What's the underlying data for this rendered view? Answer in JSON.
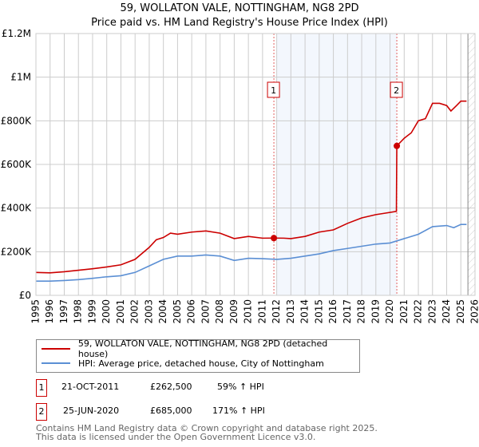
{
  "chart_data": {
    "type": "line",
    "title": "59, WOLLATON VALE, NOTTINGHAM, NG8 2PD",
    "subtitle": "Price paid vs. HM Land Registry's House Price Index (HPI)",
    "xlim": [
      1995,
      2026
    ],
    "ylim": [
      0,
      1200000
    ],
    "x_ticks": [
      "1995",
      "1996",
      "1997",
      "1998",
      "1999",
      "2000",
      "2001",
      "2002",
      "2003",
      "2004",
      "2005",
      "2006",
      "2007",
      "2008",
      "2009",
      "2010",
      "2011",
      "2012",
      "2013",
      "2014",
      "2015",
      "2016",
      "2017",
      "2018",
      "2019",
      "2020",
      "2021",
      "2022",
      "2023",
      "2024",
      "2025",
      "2026"
    ],
    "y_ticks": [
      {
        "v": 0,
        "label": "£0"
      },
      {
        "v": 200000,
        "label": "£200K"
      },
      {
        "v": 400000,
        "label": "£400K"
      },
      {
        "v": 600000,
        "label": "£600K"
      },
      {
        "v": 800000,
        "label": "£800K"
      },
      {
        "v": 1000000,
        "label": "£1M"
      },
      {
        "v": 1200000,
        "label": "£1.2M"
      }
    ],
    "grid": true,
    "series": [
      {
        "name": "59, WOLLATON VALE, NOTTINGHAM, NG8 2PD (detached house)",
        "color": "#cc0000",
        "x": [
          1995,
          1996,
          1997,
          1998,
          1999,
          2000,
          2001,
          2002,
          2003,
          2003.5,
          2004,
          2004.5,
          2005,
          2006,
          2007,
          2008,
          2009,
          2009.5,
          2010,
          2011,
          2011.8,
          2012.5,
          2013,
          2014,
          2015,
          2016,
          2017,
          2018,
          2019,
          2019.5,
          2020.45,
          2020.48,
          2021,
          2021.5,
          2022,
          2022.5,
          2023,
          2023.5,
          2024,
          2024.3,
          2024.7,
          2025,
          2025.4
        ],
        "y": [
          105000,
          103000,
          108000,
          115000,
          122000,
          130000,
          140000,
          165000,
          220000,
          255000,
          265000,
          285000,
          280000,
          290000,
          295000,
          285000,
          260000,
          265000,
          270000,
          262000,
          262500,
          262000,
          260000,
          270000,
          290000,
          300000,
          330000,
          355000,
          370000,
          375000,
          385000,
          685000,
          720000,
          745000,
          800000,
          810000,
          880000,
          880000,
          870000,
          845000,
          870000,
          890000,
          890000
        ]
      },
      {
        "name": "HPI: Average price, detached house, City of Nottingham",
        "color": "#5b8fd4",
        "x": [
          1995,
          1996,
          1997,
          1998,
          1999,
          2000,
          2001,
          2002,
          2003,
          2004,
          2005,
          2006,
          2007,
          2008,
          2009,
          2010,
          2011,
          2012,
          2013,
          2014,
          2015,
          2016,
          2017,
          2018,
          2019,
          2020,
          2021,
          2022,
          2023,
          2024,
          2024.5,
          2025,
          2025.4
        ],
        "y": [
          65000,
          65000,
          68000,
          72000,
          78000,
          85000,
          90000,
          105000,
          135000,
          165000,
          180000,
          180000,
          185000,
          180000,
          160000,
          170000,
          168000,
          165000,
          170000,
          180000,
          190000,
          205000,
          215000,
          225000,
          235000,
          240000,
          260000,
          280000,
          315000,
          320000,
          310000,
          325000,
          325000
        ]
      }
    ],
    "annotations": [
      {
        "label": "1",
        "x": 2011.8,
        "y": 262500
      },
      {
        "label": "2",
        "x": 2020.48,
        "y": 685000
      }
    ],
    "shaded_range": [
      2012,
      2020.48
    ],
    "hatched_from": 2025.5
  },
  "legend": {
    "property": "59, WOLLATON VALE, NOTTINGHAM, NG8 2PD (detached house)",
    "hpi": "HPI: Average price, detached house, City of Nottingham"
  },
  "transactions": [
    {
      "id": "1",
      "date": "21-OCT-2011",
      "price": "£262,500",
      "hpi": "59% ↑ HPI"
    },
    {
      "id": "2",
      "date": "25-JUN-2020",
      "price": "£685,000",
      "hpi": "171% ↑ HPI"
    }
  ],
  "footer": {
    "line1": "Contains HM Land Registry data © Crown copyright and database right 2025.",
    "line2": "This data is licensed under the Open Government Licence v3.0."
  }
}
